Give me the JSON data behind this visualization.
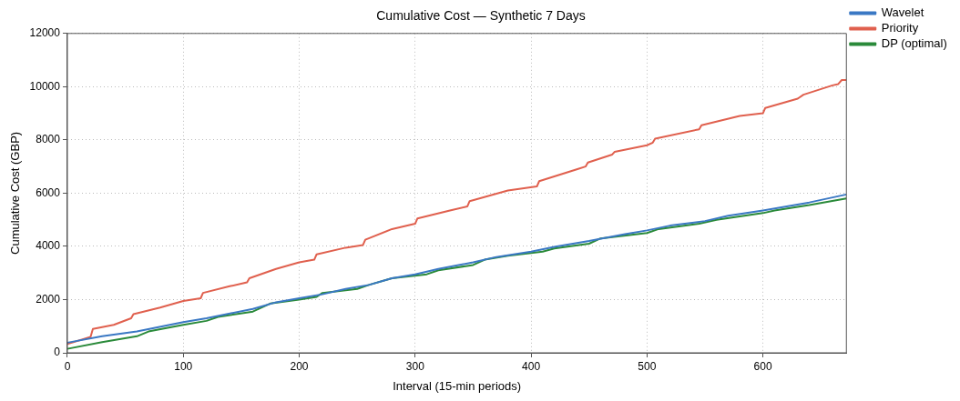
{
  "chart_data": {
    "type": "line",
    "title": "Cumulative Cost — Synthetic 7 Days",
    "xlabel": "Interval (15-min periods)",
    "ylabel": "Cumulative Cost (GBP)",
    "xlim": [
      0,
      672
    ],
    "xticks": [
      0,
      100,
      200,
      300,
      400,
      500,
      600
    ],
    "ylim": [
      0,
      12000
    ],
    "yticks": [
      0,
      2000,
      4000,
      6000,
      8000,
      10000,
      12000
    ],
    "grid": true,
    "legend": "top right",
    "marker": "none",
    "line_style": "solid",
    "series": [
      {
        "name": "Wavelet",
        "color": "#3a78c4",
        "x": [
          0,
          30,
          60,
          100,
          120,
          160,
          180,
          200,
          220,
          240,
          260,
          280,
          300,
          320,
          350,
          370,
          400,
          420,
          450,
          480,
          500,
          520,
          550,
          570,
          600,
          640,
          672
        ],
        "values": [
          380,
          620,
          800,
          1150,
          1300,
          1650,
          1900,
          2050,
          2200,
          2400,
          2550,
          2800,
          2950,
          3150,
          3400,
          3600,
          3800,
          3980,
          4200,
          4450,
          4600,
          4780,
          4950,
          5150,
          5350,
          5650,
          5950
        ]
      },
      {
        "name": "Priority",
        "color": "#e0604e",
        "x": [
          0,
          20,
          22,
          40,
          55,
          57,
          80,
          100,
          115,
          117,
          140,
          155,
          157,
          180,
          200,
          213,
          215,
          240,
          255,
          257,
          280,
          300,
          302,
          330,
          345,
          347,
          380,
          405,
          407,
          440,
          447,
          449,
          470,
          472,
          500,
          505,
          507,
          545,
          547,
          580,
          600,
          602,
          630,
          635,
          660,
          665,
          668,
          672
        ],
        "values": [
          330,
          600,
          900,
          1050,
          1300,
          1450,
          1700,
          1950,
          2050,
          2250,
          2500,
          2650,
          2800,
          3150,
          3400,
          3500,
          3700,
          3950,
          4050,
          4250,
          4650,
          4850,
          5050,
          5350,
          5500,
          5700,
          6100,
          6250,
          6450,
          6900,
          7000,
          7150,
          7450,
          7550,
          7800,
          7900,
          8050,
          8400,
          8550,
          8900,
          9000,
          9200,
          9550,
          9700,
          10050,
          10100,
          10250,
          10250
        ]
      },
      {
        "name": "DP (optimal)",
        "color": "#2a8a3a",
        "x": [
          0,
          30,
          60,
          70,
          100,
          120,
          130,
          160,
          175,
          200,
          215,
          220,
          250,
          260,
          280,
          310,
          320,
          350,
          360,
          380,
          410,
          420,
          450,
          460,
          500,
          510,
          545,
          560,
          600,
          610,
          640,
          672
        ],
        "values": [
          150,
          400,
          620,
          800,
          1050,
          1200,
          1350,
          1550,
          1850,
          2000,
          2100,
          2250,
          2400,
          2550,
          2800,
          2950,
          3100,
          3300,
          3500,
          3650,
          3800,
          3920,
          4100,
          4300,
          4500,
          4650,
          4850,
          5000,
          5250,
          5350,
          5550,
          5800
        ]
      }
    ]
  }
}
